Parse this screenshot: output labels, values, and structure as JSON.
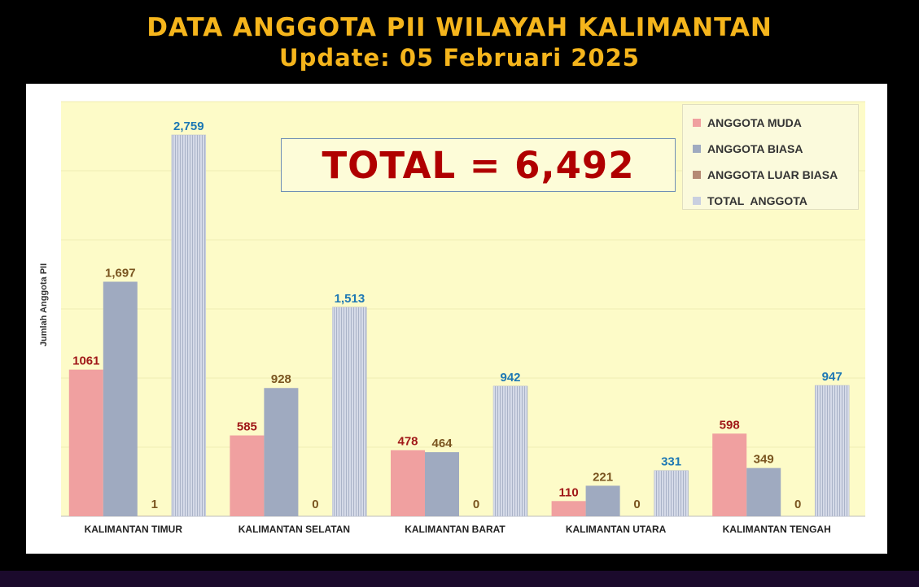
{
  "header": {
    "title": "DATA ANGGOTA PII WILAYAH KALIMANTAN",
    "subtitle": "Update: 05 Februari 2025"
  },
  "total_label": "TOTAL = 6,492",
  "colors": {
    "muda": "#f0a0a0",
    "biasa": "#9faac0",
    "luar_biasa": "#b58a74",
    "total": "#c9cfe0",
    "plot_bg": "#fdfbc8",
    "label_red": "#a01818",
    "label_brown": "#7a5520",
    "label_blue": "#1e78b4"
  },
  "chart_data": {
    "type": "bar",
    "title": "",
    "xlabel": "",
    "ylabel": "Jumlah Anggota PII",
    "ylim": [
      0,
      3000
    ],
    "grid": true,
    "legend_position": "top-right",
    "categories": [
      "KALIMANTAN TIMUR",
      "KALIMANTAN SELATAN",
      "KALIMANTAN BARAT",
      "KALIMANTAN UTARA",
      "KALIMANTAN TENGAH"
    ],
    "series": [
      {
        "name": "ANGGOTA MUDA",
        "key": "muda",
        "values": [
          1061,
          585,
          478,
          110,
          598
        ],
        "labels": [
          "1061",
          "585",
          "478",
          "110",
          "598"
        ]
      },
      {
        "name": "ANGGOTA BIASA",
        "key": "biasa",
        "values": [
          1697,
          928,
          464,
          221,
          349
        ],
        "labels": [
          "1,697",
          "928",
          "464",
          "221",
          "349"
        ]
      },
      {
        "name": "ANGGOTA LUAR BIASA",
        "key": "luar_biasa",
        "values": [
          1,
          0,
          0,
          0,
          0
        ],
        "labels": [
          "1",
          "0",
          "0",
          "0",
          "0"
        ]
      },
      {
        "name": "TOTAL  ANGGOTA",
        "key": "total",
        "values": [
          2759,
          1513,
          942,
          331,
          947
        ],
        "labels": [
          "2,759",
          "1,513",
          "942",
          "331",
          "947"
        ]
      }
    ]
  }
}
